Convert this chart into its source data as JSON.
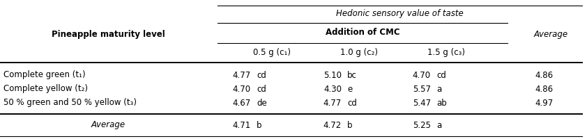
{
  "title_row1": "Hedonic sensory value of taste",
  "title_row2": "Addition of CMC",
  "col_header_left": "Pineapple maturity level",
  "col_header_avg": "Average",
  "sub_headers": [
    "0.5 g (c₁)",
    "1.0 g (c₂)",
    "1.5 g (c₃)"
  ],
  "rows": [
    {
      "label": "Complete green (t₁)",
      "vals": [
        "4.77",
        "cd",
        "5.10",
        "bc",
        "4.70",
        "cd"
      ],
      "avg": "4.86"
    },
    {
      "label": "Complete yellow (t₂)",
      "vals": [
        "4.70",
        "cd",
        "4.30",
        "e",
        "5.57",
        "a"
      ],
      "avg": "4.86"
    },
    {
      "label": "50 % green and 50 % yellow (t₃)",
      "vals": [
        "4.67",
        "de",
        "4.77",
        "cd",
        "5.47",
        "ab"
      ],
      "avg": "4.97"
    }
  ],
  "avg_row": {
    "label": "Average",
    "vals": [
      "4.71",
      "b",
      "4.72",
      "b",
      "5.25",
      "a"
    ],
    "avg": ""
  },
  "bg_color": "#ffffff",
  "text_color": "#000000",
  "font_size": 8.5,
  "bold_font_size": 8.5
}
